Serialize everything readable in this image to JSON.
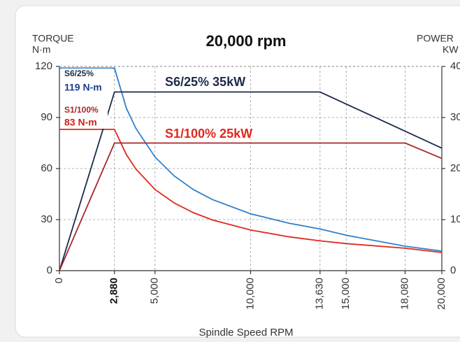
{
  "chart_data": {
    "type": "line",
    "title": "20,000 rpm",
    "y_label": [
      "TORQUE",
      "N·m"
    ],
    "y2_label": [
      "POWER",
      "KW"
    ],
    "x_label": "Spindle Speed RPM",
    "xlim": [
      0,
      20000
    ],
    "xticks": [
      0,
      {
        "value": 2880,
        "label": "2,880"
      },
      {
        "value": 5000,
        "label": "5,000"
      },
      {
        "value": 10000,
        "label": "10,000"
      },
      {
        "value": 13630,
        "label": "13,630"
      },
      {
        "value": 15000,
        "label": "15,000"
      },
      {
        "value": 18080,
        "label": "18,080"
      },
      {
        "value": 20000,
        "label": "20,000"
      }
    ],
    "ylim": [
      0,
      120
    ],
    "yticks": [
      0,
      30,
      60,
      90,
      120
    ],
    "y2lim": [
      0,
      40
    ],
    "y2ticks": [
      0,
      10,
      20,
      30,
      40
    ],
    "grid": true,
    "series": [
      {
        "name": "S6/25%",
        "color": "#2f80c8",
        "x": [
          0,
          2880,
          3500,
          4000,
          5000,
          6000,
          7000,
          8000,
          10000,
          12000,
          13630,
          15000,
          18080,
          20000
        ],
        "values": [
          119,
          119,
          95.5,
          83.6,
          66.8,
          55.7,
          47.7,
          41.8,
          33.4,
          27.9,
          24.5,
          20.8,
          14.4,
          11.5
        ]
      },
      {
        "name": "S1/100%",
        "color": "#e0281e",
        "x": [
          0,
          2880,
          3500,
          4000,
          5000,
          6000,
          7000,
          8000,
          10000,
          12000,
          13630,
          15000,
          18080,
          20000
        ],
        "values": [
          83,
          83,
          68.2,
          59.7,
          47.7,
          39.8,
          34.1,
          29.8,
          23.9,
          19.9,
          17.5,
          15.9,
          13.2,
          10.7
        ]
      },
      {
        "name": "S6/25% 35kW",
        "color": "#1c2a4a",
        "axis": "y2",
        "x": [
          0,
          2880,
          13630,
          20000
        ],
        "values": [
          0,
          35,
          35,
          24
        ]
      },
      {
        "name": "S1/100% 25kW",
        "color": "#a8272a",
        "axis": "y2",
        "x": [
          0,
          2880,
          18080,
          20000
        ],
        "values": [
          0,
          25,
          25,
          22
        ]
      }
    ],
    "annotations": [
      {
        "text": "119 N-m",
        "color": "#1c3f8c"
      },
      {
        "text": "83 N-m",
        "color": "#d0201a"
      }
    ]
  }
}
